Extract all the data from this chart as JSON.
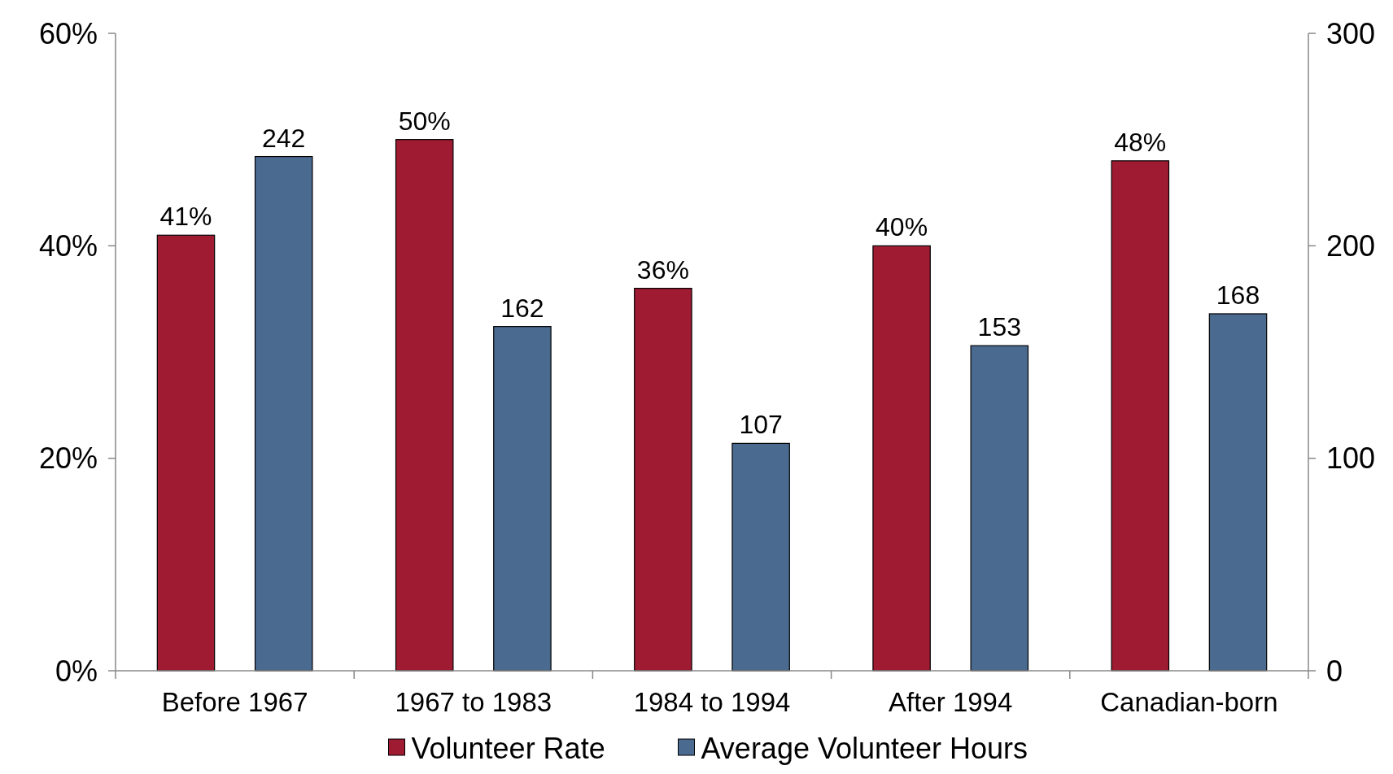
{
  "chart_data": {
    "type": "bar",
    "categories": [
      "Before 1967",
      "1967 to 1983",
      "1984 to 1994",
      "After 1994",
      "Canadian-born"
    ],
    "series": [
      {
        "name": "Volunteer Rate",
        "color": "#9e1b32",
        "values": [
          41,
          50,
          36,
          40,
          48
        ],
        "value_labels": [
          "41%",
          "50%",
          "36%",
          "40%",
          "48%"
        ]
      },
      {
        "name": "Average Volunteer Hours",
        "color": "#4a6a90",
        "axis": "y2",
        "values": [
          242,
          162,
          107,
          153,
          168
        ],
        "value_labels": [
          "242",
          "162",
          "107",
          "153",
          "168"
        ]
      }
    ],
    "ylim": [
      0,
      60
    ],
    "yticks": [
      {
        "value": 0,
        "label": "0%"
      },
      {
        "value": 20,
        "label": "20%"
      },
      {
        "value": 40,
        "label": "40%"
      },
      {
        "value": 60,
        "label": "60%"
      }
    ],
    "y2lim": [
      0,
      300
    ],
    "y2ticks": [
      0,
      100,
      200,
      300
    ],
    "legend": "bottom",
    "grid": false
  }
}
